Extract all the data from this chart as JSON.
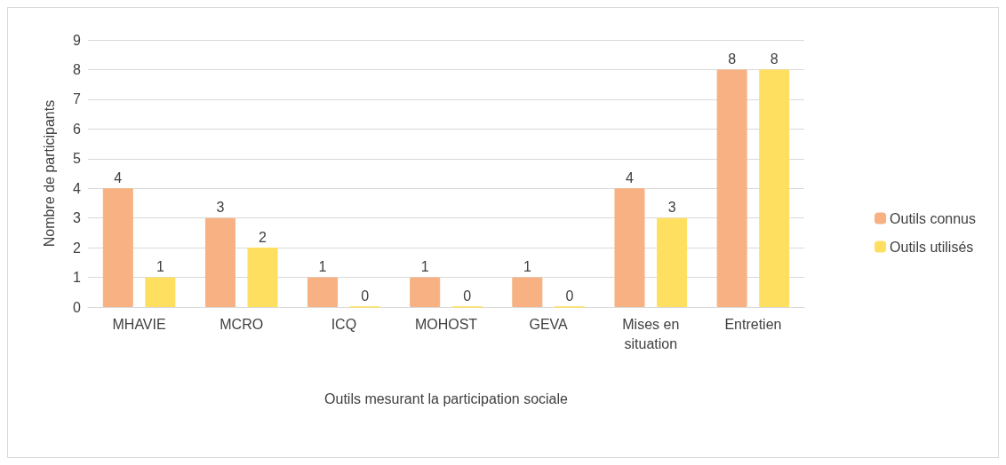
{
  "chart_data": {
    "type": "bar",
    "xlabel": "Outils mesurant la participation sociale",
    "ylabel": "Nombre de participants",
    "categories": [
      "MHAVIE",
      "MCRO",
      "ICQ",
      "MOHOST",
      "GEVA",
      "Mises en\nsituation",
      "Entretien"
    ],
    "series": [
      {
        "name": "Outils connus",
        "color": "#f7b183",
        "values": [
          4,
          3,
          1,
          1,
          1,
          4,
          8
        ]
      },
      {
        "name": "Outils utilisés",
        "color": "#ffdf5f",
        "values": [
          1,
          2,
          0,
          0,
          0,
          3,
          8
        ]
      }
    ],
    "ylim": [
      0,
      9
    ],
    "yticks": [
      0,
      1,
      2,
      3,
      4,
      5,
      6,
      7,
      8,
      9
    ],
    "grid": "y",
    "legend": "right",
    "data_labels": true
  }
}
